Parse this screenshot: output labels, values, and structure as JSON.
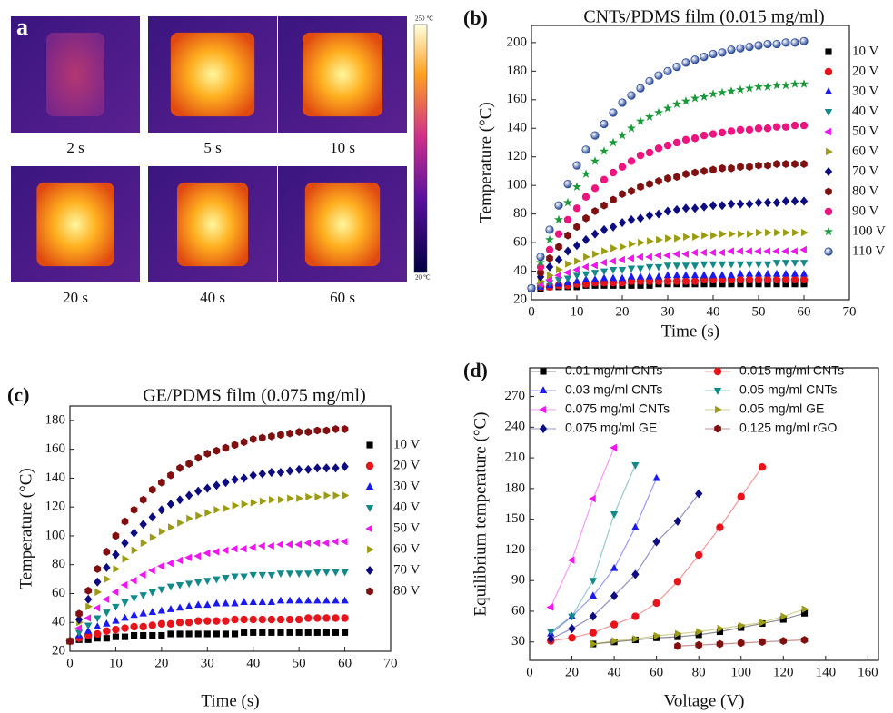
{
  "panel_a": {
    "label": "a",
    "captions": [
      "2 s",
      "5 s",
      "10 s",
      "20 s",
      "40 s",
      "60 s"
    ],
    "colorbar": {
      "max_label": "250 ℃",
      "min_label": "20 ℃"
    }
  },
  "chart_data": [
    {
      "type": "scatter",
      "panel_label": "(b)",
      "title": "CNTs/PDMS film (0.015 mg/ml)",
      "x_label": "Time (s)",
      "y_label": "Temperature (°C)",
      "legend": "right",
      "xlim": [
        0,
        70
      ],
      "ylim": [
        20,
        212
      ],
      "xticks": [
        0,
        10,
        20,
        30,
        40,
        50,
        60,
        70
      ],
      "yticks": [
        20,
        40,
        60,
        80,
        100,
        120,
        140,
        160,
        180,
        200
      ],
      "x": [
        0,
        2,
        4,
        6,
        8,
        10,
        12,
        14,
        16,
        18,
        20,
        22,
        24,
        26,
        28,
        30,
        32,
        34,
        36,
        38,
        40,
        42,
        44,
        46,
        48,
        50,
        52,
        54,
        56,
        58,
        60
      ],
      "series": [
        {
          "name": "10 V",
          "color": "#000000",
          "marker": "square",
          "values": [
            28,
            28,
            29,
            29,
            29,
            29,
            30,
            30,
            30,
            30,
            30,
            30,
            30,
            30,
            31,
            31,
            31,
            31,
            31,
            31,
            31,
            31,
            31,
            31,
            31,
            31,
            31,
            31,
            31,
            31,
            31
          ]
        },
        {
          "name": "20 V",
          "color": "#e8141c",
          "marker": "circle",
          "values": [
            28,
            29,
            29,
            30,
            30,
            31,
            31,
            32,
            32,
            32,
            32,
            33,
            33,
            33,
            33,
            33,
            33,
            33,
            33,
            34,
            34,
            34,
            34,
            34,
            34,
            34,
            34,
            34,
            34,
            34,
            34
          ]
        },
        {
          "name": "30 V",
          "color": "#1a1aee",
          "marker": "tri-up",
          "values": [
            28,
            29,
            30,
            31,
            32,
            33,
            34,
            34,
            35,
            35,
            35,
            36,
            36,
            36,
            36,
            37,
            37,
            37,
            37,
            37,
            37,
            37,
            37,
            38,
            38,
            38,
            38,
            38,
            38,
            38,
            38
          ]
        },
        {
          "name": "40 V",
          "color": "#138a8a",
          "marker": "tri-down",
          "values": [
            28,
            30,
            32,
            34,
            35,
            37,
            38,
            39,
            40,
            41,
            41,
            42,
            42,
            43,
            43,
            44,
            44,
            44,
            44,
            45,
            45,
            45,
            45,
            45,
            45,
            45,
            45,
            46,
            46,
            46,
            46
          ]
        },
        {
          "name": "50 V",
          "color": "#ee18ee",
          "marker": "tri-left",
          "values": [
            28,
            31,
            34,
            37,
            39,
            41,
            43,
            44,
            46,
            47,
            48,
            49,
            50,
            50,
            51,
            51,
            52,
            52,
            53,
            53,
            53,
            53,
            54,
            54,
            54,
            54,
            54,
            54,
            54,
            54,
            55
          ]
        },
        {
          "name": "60 V",
          "color": "#9c9c14",
          "marker": "tri-right",
          "values": [
            28,
            33,
            37,
            41,
            45,
            47,
            50,
            52,
            54,
            56,
            57,
            59,
            60,
            61,
            62,
            63,
            63,
            64,
            64,
            65,
            65,
            66,
            66,
            66,
            66,
            67,
            67,
            67,
            67,
            67,
            67
          ]
        },
        {
          "name": "70 V",
          "color": "#0c0c80",
          "marker": "diamond",
          "values": [
            28,
            36,
            43,
            48,
            54,
            58,
            62,
            66,
            69,
            71,
            74,
            76,
            77,
            79,
            80,
            82,
            83,
            84,
            84,
            85,
            86,
            86,
            87,
            87,
            87,
            88,
            88,
            88,
            89,
            89,
            89
          ]
        },
        {
          "name": "80 V",
          "color": "#801010",
          "marker": "hexagon",
          "values": [
            28,
            39,
            49,
            57,
            65,
            71,
            77,
            82,
            86,
            90,
            94,
            96,
            99,
            101,
            103,
            105,
            106,
            108,
            109,
            110,
            111,
            112,
            112,
            113,
            113,
            114,
            114,
            115,
            115,
            115,
            115
          ]
        },
        {
          "name": "90 V",
          "color": "#ee1480",
          "marker": "circle",
          "values": [
            28,
            43,
            55,
            66,
            76,
            84,
            92,
            98,
            104,
            109,
            113,
            117,
            121,
            123,
            126,
            128,
            130,
            132,
            133,
            135,
            136,
            137,
            138,
            139,
            139,
            140,
            140,
            141,
            141,
            142,
            142
          ]
        },
        {
          "name": "100 V",
          "color": "#1a9a3a",
          "marker": "star",
          "values": [
            28,
            46,
            62,
            76,
            88,
            99,
            108,
            117,
            124,
            130,
            135,
            140,
            145,
            148,
            151,
            154,
            157,
            159,
            161,
            162,
            164,
            165,
            166,
            167,
            168,
            169,
            169,
            170,
            170,
            171,
            171
          ]
        },
        {
          "name": "110 V",
          "color": "#2a4a9a",
          "marker": "ball",
          "values": [
            28,
            50,
            69,
            86,
            101,
            114,
            125,
            135,
            143,
            151,
            158,
            163,
            168,
            173,
            177,
            180,
            183,
            186,
            188,
            190,
            192,
            193,
            195,
            196,
            197,
            198,
            199,
            199,
            200,
            200,
            201
          ]
        }
      ]
    },
    {
      "type": "scatter",
      "panel_label": "(c)",
      "title": "GE/PDMS film (0.075 mg/ml)",
      "x_label": "Time (s)",
      "y_label": "Temperature (°C)",
      "legend": "right",
      "xlim": [
        0,
        70
      ],
      "ylim": [
        20,
        190
      ],
      "xticks": [
        0,
        10,
        20,
        30,
        40,
        50,
        60,
        70
      ],
      "yticks": [
        20,
        40,
        60,
        80,
        100,
        120,
        140,
        160,
        180
      ],
      "x": [
        0,
        2,
        4,
        6,
        8,
        10,
        12,
        14,
        16,
        18,
        20,
        22,
        24,
        26,
        28,
        30,
        32,
        34,
        36,
        38,
        40,
        42,
        44,
        46,
        48,
        50,
        52,
        54,
        56,
        58,
        60
      ],
      "series": [
        {
          "name": "10 V",
          "color": "#000000",
          "marker": "square",
          "values": [
            27,
            28,
            28,
            29,
            29,
            30,
            30,
            31,
            31,
            31,
            31,
            32,
            32,
            32,
            32,
            32,
            32,
            32,
            32,
            33,
            33,
            33,
            33,
            33,
            33,
            33,
            33,
            33,
            33,
            33,
            33
          ]
        },
        {
          "name": "20 V",
          "color": "#e8141c",
          "marker": "circle",
          "values": [
            27,
            29,
            31,
            32,
            34,
            35,
            36,
            37,
            37,
            38,
            39,
            39,
            40,
            40,
            41,
            41,
            41,
            41,
            42,
            42,
            42,
            42,
            42,
            42,
            42,
            42,
            43,
            43,
            43,
            43,
            43
          ]
        },
        {
          "name": "30 V",
          "color": "#1a1aee",
          "marker": "tri-up",
          "values": [
            27,
            31,
            34,
            37,
            39,
            41,
            43,
            45,
            46,
            47,
            48,
            49,
            50,
            51,
            52,
            52,
            53,
            53,
            53,
            54,
            54,
            54,
            54,
            55,
            55,
            55,
            55,
            55,
            55,
            55,
            55
          ]
        },
        {
          "name": "40 V",
          "color": "#138a8a",
          "marker": "tri-down",
          "values": [
            27,
            33,
            38,
            43,
            47,
            51,
            54,
            57,
            59,
            61,
            63,
            65,
            66,
            67,
            68,
            69,
            70,
            71,
            72,
            72,
            73,
            73,
            73,
            74,
            74,
            74,
            74,
            75,
            75,
            75,
            75
          ]
        },
        {
          "name": "50 V",
          "color": "#ee18ee",
          "marker": "tri-left",
          "values": [
            27,
            36,
            43,
            50,
            56,
            61,
            66,
            69,
            73,
            76,
            79,
            81,
            83,
            85,
            86,
            88,
            89,
            90,
            91,
            91,
            92,
            93,
            93,
            94,
            94,
            94,
            95,
            95,
            95,
            96,
            96
          ]
        },
        {
          "name": "60 V",
          "color": "#9c9c14",
          "marker": "tri-right",
          "values": [
            27,
            40,
            51,
            61,
            70,
            77,
            84,
            90,
            95,
            99,
            103,
            106,
            109,
            112,
            114,
            116,
            118,
            119,
            121,
            122,
            123,
            124,
            125,
            125,
            126,
            126,
            127,
            127,
            128,
            128,
            128
          ]
        },
        {
          "name": "70 V",
          "color": "#0c0c80",
          "marker": "diamond",
          "values": [
            27,
            42,
            56,
            68,
            78,
            87,
            95,
            102,
            108,
            113,
            118,
            122,
            125,
            128,
            131,
            133,
            135,
            137,
            139,
            140,
            142,
            143,
            144,
            144,
            145,
            146,
            146,
            147,
            147,
            147,
            148
          ]
        },
        {
          "name": "80 V",
          "color": "#801010",
          "marker": "hexagon",
          "values": [
            27,
            46,
            62,
            77,
            89,
            100,
            110,
            118,
            125,
            132,
            137,
            142,
            147,
            150,
            154,
            157,
            159,
            161,
            163,
            165,
            167,
            168,
            169,
            170,
            171,
            172,
            172,
            173,
            173,
            174,
            174
          ]
        }
      ]
    },
    {
      "type": "scatter",
      "panel_label": "(d)",
      "x_label": "Voltage (V)",
      "y_label": "Equilibrium temperature (°C)",
      "legend": "top",
      "lines": true,
      "xlim": [
        0,
        165
      ],
      "ylim": [
        12,
        298
      ],
      "xticks": [
        0,
        20,
        40,
        60,
        80,
        100,
        120,
        140,
        160
      ],
      "yticks": [
        30,
        60,
        90,
        120,
        150,
        180,
        210,
        240,
        270
      ],
      "series": [
        {
          "name": "0.01 mg/ml CNTs",
          "color": "#000000",
          "marker": "square",
          "x": [
            30,
            40,
            50,
            60,
            70,
            80,
            90,
            100,
            110,
            120,
            130
          ],
          "values": [
            28,
            30,
            32,
            34,
            35,
            37,
            40,
            44,
            48,
            52,
            58
          ]
        },
        {
          "name": "0.015 mg/ml CNTs",
          "color": "#e8141c",
          "marker": "circle",
          "x": [
            10,
            20,
            30,
            40,
            50,
            60,
            70,
            80,
            90,
            100,
            110
          ],
          "values": [
            31,
            34,
            39,
            47,
            55,
            68,
            89,
            115,
            142,
            172,
            201
          ]
        },
        {
          "name": "0.03 mg/ml CNTs",
          "color": "#1a1aee",
          "marker": "tri-up",
          "x": [
            10,
            20,
            30,
            40,
            50,
            60
          ],
          "values": [
            38,
            55,
            75,
            102,
            142,
            190
          ]
        },
        {
          "name": "0.05 mg/ml CNTs",
          "color": "#138a8a",
          "marker": "tri-down",
          "x": [
            10,
            20,
            30,
            40,
            50
          ],
          "values": [
            40,
            55,
            90,
            155,
            203
          ]
        },
        {
          "name": "0.075 mg/ml CNTs",
          "color": "#ee18ee",
          "marker": "tri-left",
          "x": [
            10,
            20,
            30,
            40
          ],
          "values": [
            64,
            110,
            170,
            220
          ]
        },
        {
          "name": "0.05 mg/ml GE",
          "color": "#9c9c14",
          "marker": "tri-right",
          "x": [
            30,
            40,
            50,
            60,
            70,
            80,
            90,
            100,
            110,
            120,
            130
          ],
          "values": [
            28,
            31,
            33,
            36,
            38,
            40,
            43,
            46,
            49,
            55,
            62
          ]
        },
        {
          "name": "0.075 mg/ml GE",
          "color": "#0c0c80",
          "marker": "diamond",
          "x": [
            10,
            20,
            30,
            40,
            50,
            60,
            70,
            80
          ],
          "values": [
            33,
            43,
            55,
            75,
            96,
            128,
            148,
            175
          ]
        },
        {
          "name": "0.125 mg/ml rGO",
          "color": "#801010",
          "marker": "hexagon",
          "x": [
            70,
            80,
            90,
            100,
            110,
            120,
            130
          ],
          "values": [
            26,
            27,
            28,
            29,
            30,
            31,
            32
          ]
        }
      ]
    }
  ]
}
